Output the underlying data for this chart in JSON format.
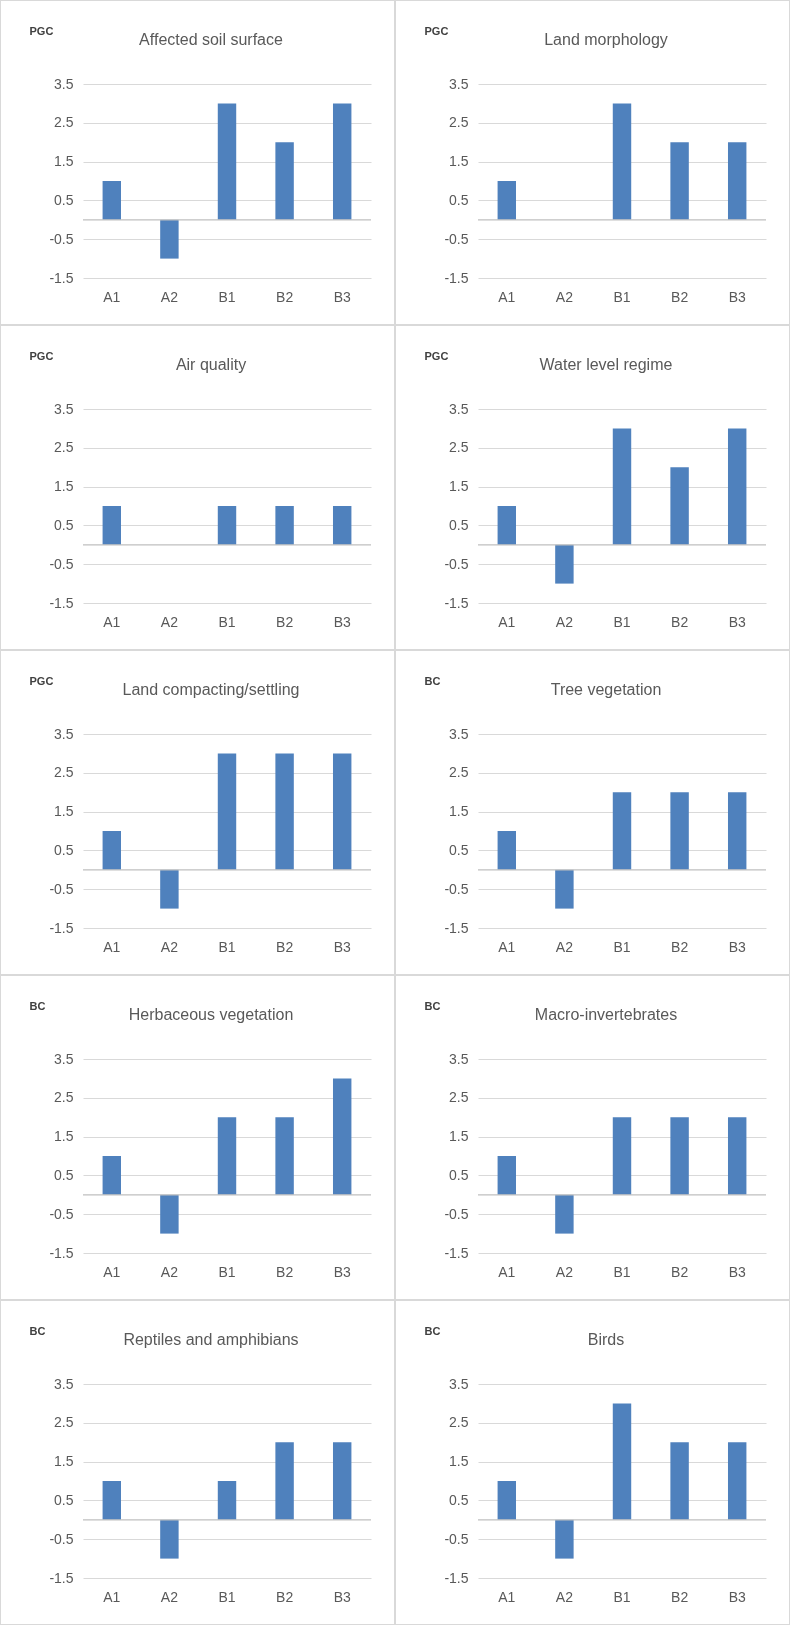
{
  "chart_data": [
    {
      "type": "bar",
      "title": "Affected soil surface",
      "ylabel": "PGC",
      "categories": [
        "A1",
        "A2",
        "B1",
        "B2",
        "B3"
      ],
      "values": [
        1,
        -1,
        3,
        2,
        3
      ],
      "color": "#4f81bd",
      "ylim": [
        -1.5,
        3.5
      ],
      "yticks": [
        -1.5,
        -0.5,
        0.5,
        1.5,
        2.5,
        3.5
      ],
      "grid": "y",
      "ref_lines": [
        {
          "axis": "y",
          "value": 0,
          "color": "#bfbfbf"
        }
      ]
    },
    {
      "type": "bar",
      "title": "Land morphology",
      "ylabel": "PGC",
      "categories": [
        "A1",
        "A2",
        "B1",
        "B2",
        "B3"
      ],
      "values": [
        1,
        0,
        3,
        2,
        2
      ],
      "color": "#4f81bd",
      "ylim": [
        -1.5,
        3.5
      ],
      "yticks": [
        -1.5,
        -0.5,
        0.5,
        1.5,
        2.5,
        3.5
      ],
      "grid": "y",
      "ref_lines": [
        {
          "axis": "y",
          "value": 0,
          "color": "#bfbfbf"
        }
      ]
    },
    {
      "type": "bar",
      "title": "Air quality",
      "ylabel": "PGC",
      "categories": [
        "A1",
        "A2",
        "B1",
        "B2",
        "B3"
      ],
      "values": [
        1,
        0,
        1,
        1,
        1
      ],
      "color": "#4f81bd",
      "ylim": [
        -1.5,
        3.5
      ],
      "yticks": [
        -1.5,
        -0.5,
        0.5,
        1.5,
        2.5,
        3.5
      ],
      "grid": "y",
      "ref_lines": [
        {
          "axis": "y",
          "value": 0,
          "color": "#bfbfbf"
        }
      ]
    },
    {
      "type": "bar",
      "title": "Water level regime",
      "ylabel": "PGC",
      "categories": [
        "A1",
        "A2",
        "B1",
        "B2",
        "B3"
      ],
      "values": [
        1,
        -1,
        3,
        2,
        3
      ],
      "color": "#4f81bd",
      "ylim": [
        -1.5,
        3.5
      ],
      "yticks": [
        -1.5,
        -0.5,
        0.5,
        1.5,
        2.5,
        3.5
      ],
      "grid": "y",
      "ref_lines": [
        {
          "axis": "y",
          "value": 0,
          "color": "#bfbfbf"
        }
      ]
    },
    {
      "type": "bar",
      "title": "Land compacting/settling",
      "ylabel": "PGC",
      "categories": [
        "A1",
        "A2",
        "B1",
        "B2",
        "B3"
      ],
      "values": [
        1,
        -1,
        3,
        3,
        3
      ],
      "color": "#4f81bd",
      "ylim": [
        -1.5,
        3.5
      ],
      "yticks": [
        -1.5,
        -0.5,
        0.5,
        1.5,
        2.5,
        3.5
      ],
      "grid": "y",
      "ref_lines": [
        {
          "axis": "y",
          "value": 0,
          "color": "#bfbfbf"
        }
      ]
    },
    {
      "type": "bar",
      "title": "Tree vegetation",
      "ylabel": "BC",
      "categories": [
        "A1",
        "A2",
        "B1",
        "B2",
        "B3"
      ],
      "values": [
        1,
        -1,
        2,
        2,
        2
      ],
      "color": "#4f81bd",
      "ylim": [
        -1.5,
        3.5
      ],
      "yticks": [
        -1.5,
        -0.5,
        0.5,
        1.5,
        2.5,
        3.5
      ],
      "grid": "y",
      "ref_lines": [
        {
          "axis": "y",
          "value": 0,
          "color": "#bfbfbf"
        }
      ]
    },
    {
      "type": "bar",
      "title": "Herbaceous vegetation",
      "ylabel": "BC",
      "categories": [
        "A1",
        "A2",
        "B1",
        "B2",
        "B3"
      ],
      "values": [
        1,
        -1,
        2,
        2,
        3
      ],
      "color": "#4f81bd",
      "ylim": [
        -1.5,
        3.5
      ],
      "yticks": [
        -1.5,
        -0.5,
        0.5,
        1.5,
        2.5,
        3.5
      ],
      "grid": "y",
      "ref_lines": [
        {
          "axis": "y",
          "value": 0,
          "color": "#bfbfbf"
        }
      ]
    },
    {
      "type": "bar",
      "title": "Macro-invertebrates",
      "ylabel": "BC",
      "categories": [
        "A1",
        "A2",
        "B1",
        "B2",
        "B3"
      ],
      "values": [
        1,
        -1,
        2,
        2,
        2
      ],
      "color": "#4f81bd",
      "ylim": [
        -1.5,
        3.5
      ],
      "yticks": [
        -1.5,
        -0.5,
        0.5,
        1.5,
        2.5,
        3.5
      ],
      "grid": "y",
      "ref_lines": [
        {
          "axis": "y",
          "value": 0,
          "color": "#bfbfbf"
        }
      ]
    },
    {
      "type": "bar",
      "title": "Reptiles and amphibians",
      "ylabel": "BC",
      "categories": [
        "A1",
        "A2",
        "B1",
        "B2",
        "B3"
      ],
      "values": [
        1,
        -1,
        1,
        2,
        2
      ],
      "color": "#4f81bd",
      "ylim": [
        -1.5,
        3.5
      ],
      "yticks": [
        -1.5,
        -0.5,
        0.5,
        1.5,
        2.5,
        3.5
      ],
      "grid": "y",
      "ref_lines": [
        {
          "axis": "y",
          "value": 0,
          "color": "#bfbfbf"
        }
      ]
    },
    {
      "type": "bar",
      "title": "Birds",
      "ylabel": "BC",
      "categories": [
        "A1",
        "A2",
        "B1",
        "B2",
        "B3"
      ],
      "values": [
        1,
        -1,
        3,
        2,
        2
      ],
      "color": "#4f81bd",
      "ylim": [
        -1.5,
        3.5
      ],
      "yticks": [
        -1.5,
        -0.5,
        0.5,
        1.5,
        2.5,
        3.5
      ],
      "grid": "y",
      "ref_lines": [
        {
          "axis": "y",
          "value": 0,
          "color": "#bfbfbf"
        }
      ]
    }
  ]
}
